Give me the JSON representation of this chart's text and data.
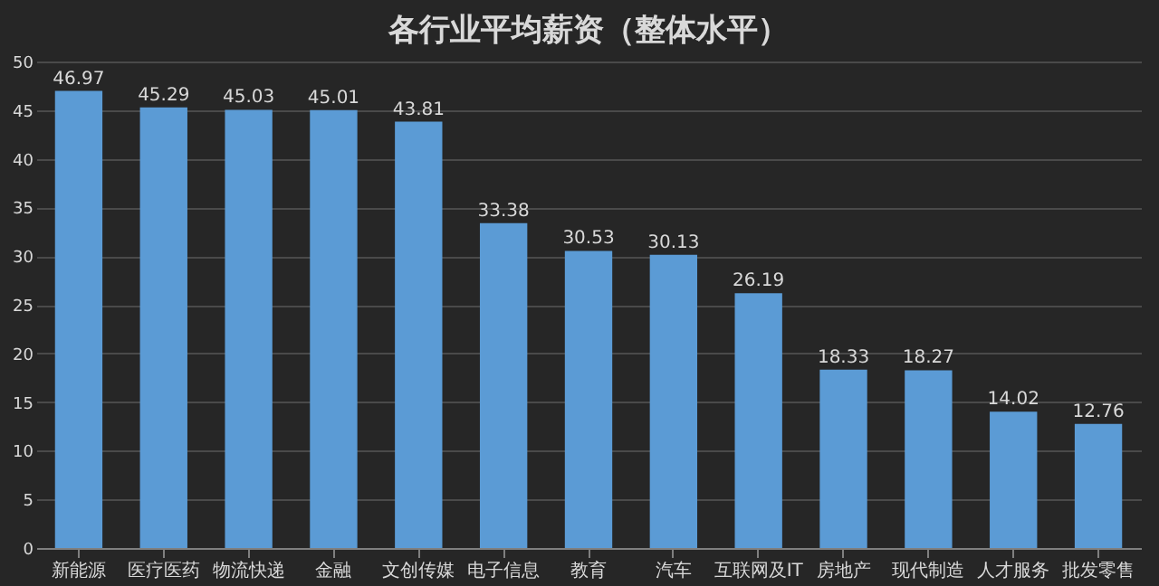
{
  "chart_data": {
    "type": "bar",
    "title": "各行业平均薪资（整体水平）",
    "categories": [
      "新能源",
      "医疗医药",
      "物流快递",
      "金融",
      "文创传媒",
      "电子信息",
      "教育",
      "汽车",
      "互联网及IT",
      "房地产",
      "现代制造",
      "人才服务",
      "批发零售"
    ],
    "values": [
      46.97,
      45.29,
      45.03,
      45.01,
      43.81,
      33.38,
      30.53,
      30.13,
      26.19,
      18.33,
      18.27,
      14.02,
      12.76
    ],
    "color": "#5b9bd5",
    "ylim": [
      0,
      50
    ],
    "yticks": [
      0,
      5,
      10,
      15,
      20,
      25,
      30,
      35,
      40,
      45,
      50
    ],
    "grid": "y",
    "data_labels": true
  }
}
